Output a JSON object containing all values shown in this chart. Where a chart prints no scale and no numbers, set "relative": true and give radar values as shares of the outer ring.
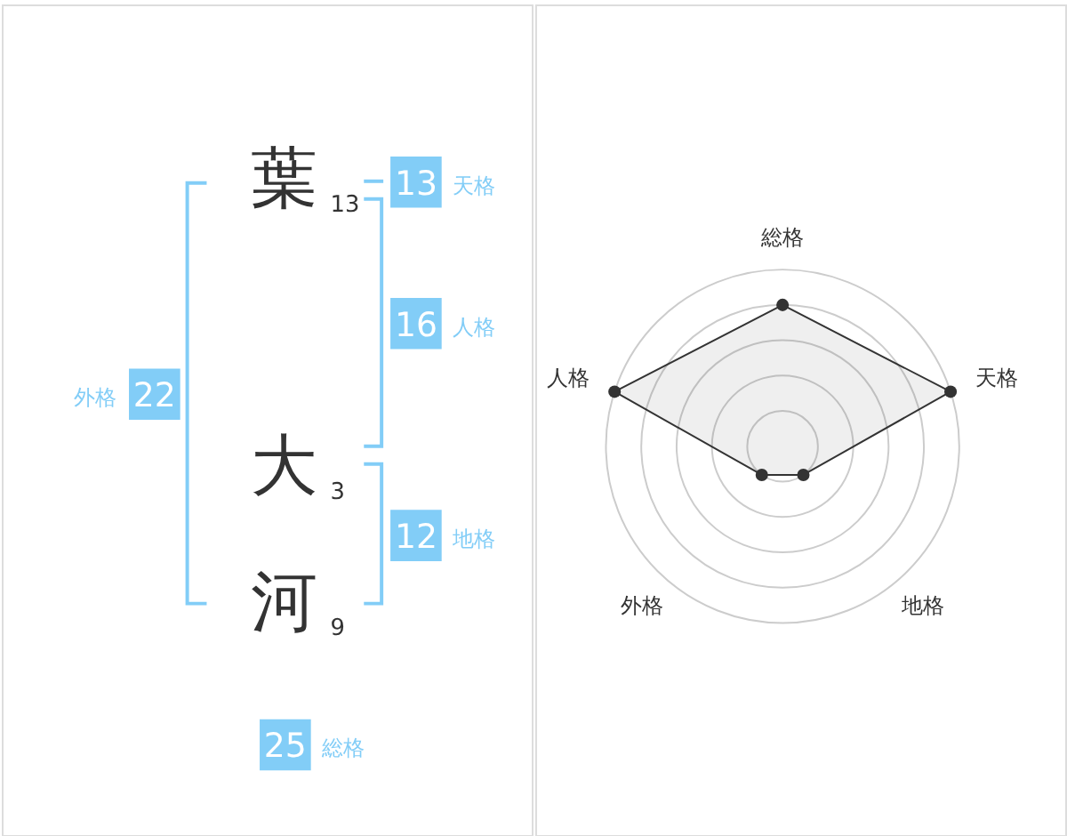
{
  "chart_data": [
    {
      "type": "other",
      "annotations": [
        "葉",
        "13",
        "大",
        "3",
        "河",
        "9",
        "13",
        "天格",
        "16",
        "人格",
        "12",
        "地格",
        "22",
        "外格",
        "25",
        "総格"
      ]
    },
    {
      "type": "radar",
      "categories": [
        "総格",
        "天格",
        "地格",
        "外格",
        "人格"
      ],
      "relative": true,
      "grid": true,
      "marker": "circle",
      "series": [
        {
          "color": "#333333",
          "values": [
            0.8,
            1,
            0.2,
            0.2,
            1
          ]
        }
      ]
    }
  ]
}
